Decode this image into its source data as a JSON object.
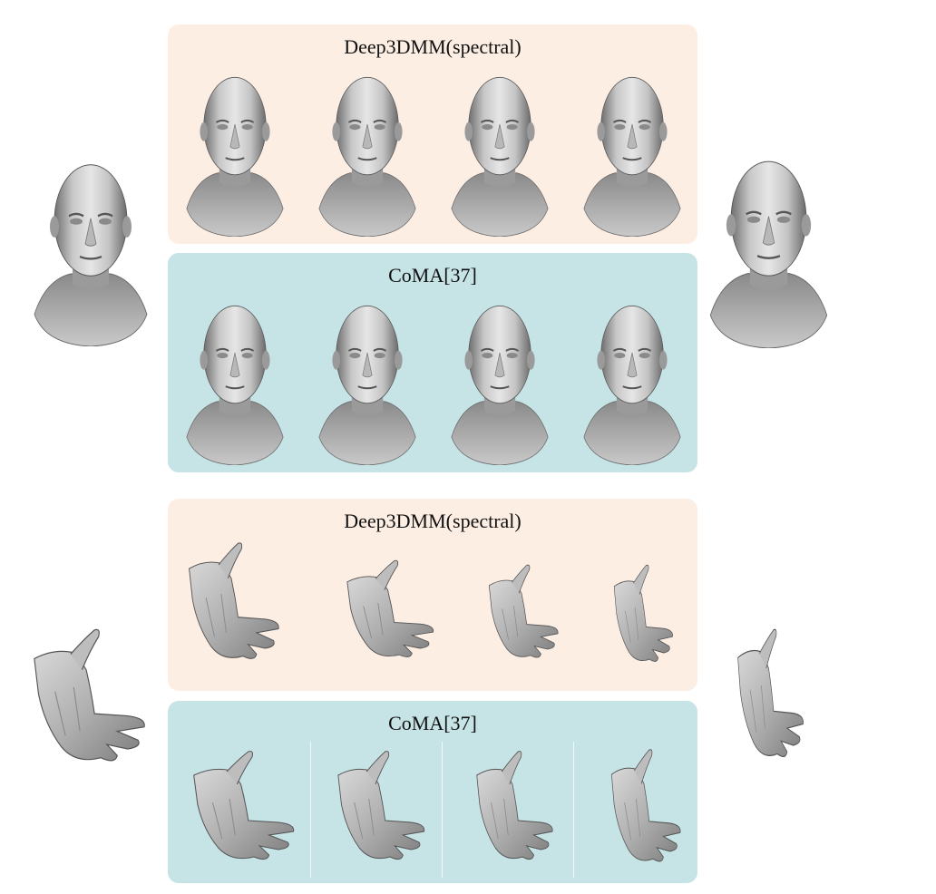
{
  "colors": {
    "spectral_panel": "#fdeee4",
    "coma_panel": "#c6e3e6",
    "mesh_light": "#e7e7e7",
    "mesh_mid": "#a9a9a9",
    "mesh_dark": "#555555"
  },
  "faces": {
    "left_endpoint": {
      "icon": "head-mesh-icon"
    },
    "right_endpoint": {
      "icon": "head-mesh-icon"
    },
    "spectral": {
      "title": "Deep3DMM(spectral)",
      "count": 4
    },
    "coma": {
      "title": "CoMA[37]",
      "count": 4
    }
  },
  "hands": {
    "left_endpoint": {
      "icon": "hand-mesh-icon"
    },
    "right_endpoint": {
      "icon": "hand-mesh-icon"
    },
    "spectral": {
      "title": "Deep3DMM(spectral)",
      "count": 4
    },
    "coma": {
      "title": "CoMA[37]",
      "count": 4
    }
  }
}
